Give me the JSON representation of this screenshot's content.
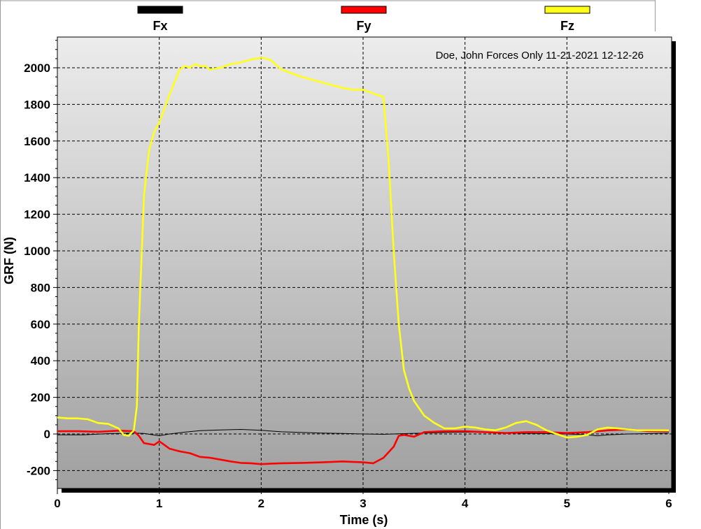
{
  "chart_data": {
    "type": "line",
    "annotation": "Doe, John Forces Only 11-21-2021  12-12-26",
    "xlabel": "Time  (s)",
    "ylabel": "GRF   (N)",
    "xlim": [
      0,
      6
    ],
    "ylim": [
      -290,
      2170
    ],
    "x_ticks": [
      0,
      1,
      2,
      3,
      4,
      5,
      6
    ],
    "x_tick_labels": [
      "0",
      "1",
      "2",
      "3",
      "4",
      "5",
      "6"
    ],
    "y_ticks": [
      -200,
      0,
      200,
      400,
      600,
      800,
      1000,
      1200,
      1400,
      1600,
      1800,
      2000
    ],
    "y_tick_labels": [
      "-200",
      "0",
      "200",
      "400",
      "600",
      "800",
      "1000",
      "1200",
      "1400",
      "1600",
      "1800",
      "2000"
    ],
    "grid": true,
    "legend_position": "top",
    "series": [
      {
        "name": "Fx",
        "color": "#000000",
        "x": [
          0,
          0.25,
          0.5,
          0.75,
          0.85,
          1.0,
          1.1,
          1.25,
          1.4,
          1.6,
          1.8,
          2.0,
          2.2,
          2.4,
          2.6,
          2.8,
          3.0,
          3.2,
          3.4,
          3.6,
          3.8,
          4.0,
          4.2,
          4.4,
          4.6,
          4.8,
          5.0,
          5.2,
          5.3,
          5.4,
          5.6,
          5.8,
          6.0
        ],
        "values": [
          -5,
          -5,
          2,
          5,
          3,
          -10,
          0,
          10,
          18,
          22,
          25,
          20,
          12,
          8,
          5,
          3,
          0,
          -2,
          2,
          5,
          8,
          10,
          8,
          5,
          3,
          2,
          0,
          -5,
          -10,
          -5,
          0,
          2,
          5
        ]
      },
      {
        "name": "Fy",
        "color": "#ff0000",
        "x": [
          0,
          0.2,
          0.4,
          0.6,
          0.75,
          0.8,
          0.85,
          0.9,
          0.95,
          1.0,
          1.05,
          1.1,
          1.2,
          1.3,
          1.4,
          1.5,
          1.6,
          1.7,
          1.8,
          1.9,
          2.0,
          2.1,
          2.2,
          2.4,
          2.6,
          2.8,
          3.0,
          3.1,
          3.2,
          3.3,
          3.35,
          3.4,
          3.5,
          3.6,
          3.8,
          4.0,
          4.2,
          4.4,
          4.6,
          4.8,
          5.0,
          5.2,
          5.4,
          5.6,
          5.8,
          6.0
        ],
        "values": [
          15,
          15,
          12,
          18,
          15,
          -10,
          -50,
          -55,
          -60,
          -40,
          -60,
          -80,
          -95,
          -105,
          -125,
          -130,
          -140,
          -150,
          -158,
          -160,
          -165,
          -162,
          -160,
          -158,
          -155,
          -150,
          -155,
          -160,
          -130,
          -70,
          -10,
          -5,
          -15,
          10,
          15,
          15,
          10,
          5,
          10,
          10,
          5,
          10,
          20,
          25,
          15,
          15
        ]
      },
      {
        "name": "Fz",
        "color": "#ffff1a",
        "x": [
          0,
          0.1,
          0.2,
          0.3,
          0.4,
          0.5,
          0.6,
          0.65,
          0.7,
          0.75,
          0.78,
          0.8,
          0.85,
          0.9,
          0.95,
          1.0,
          1.1,
          1.2,
          1.25,
          1.3,
          1.35,
          1.4,
          1.45,
          1.5,
          1.6,
          1.7,
          1.8,
          1.9,
          2.0,
          2.05,
          2.1,
          2.2,
          2.4,
          2.6,
          2.8,
          2.9,
          3.0,
          3.1,
          3.2,
          3.25,
          3.3,
          3.35,
          3.4,
          3.45,
          3.5,
          3.6,
          3.7,
          3.8,
          3.9,
          4.0,
          4.1,
          4.2,
          4.3,
          4.4,
          4.5,
          4.6,
          4.7,
          4.8,
          4.9,
          5.0,
          5.1,
          5.2,
          5.3,
          5.4,
          5.5,
          5.6,
          5.7,
          5.8,
          5.9,
          6.0
        ],
        "values": [
          90,
          85,
          85,
          80,
          60,
          55,
          30,
          -5,
          -10,
          20,
          150,
          600,
          1300,
          1550,
          1650,
          1700,
          1850,
          1990,
          2010,
          2000,
          2020,
          2010,
          2010,
          1990,
          2000,
          2020,
          2030,
          2045,
          2055,
          2050,
          2040,
          1990,
          1950,
          1920,
          1890,
          1880,
          1880,
          1860,
          1840,
          1500,
          1000,
          600,
          350,
          250,
          180,
          100,
          60,
          30,
          30,
          40,
          35,
          25,
          20,
          35,
          60,
          70,
          50,
          20,
          0,
          -20,
          -15,
          -5,
          25,
          35,
          30,
          25,
          20,
          20,
          20,
          20
        ]
      }
    ]
  }
}
